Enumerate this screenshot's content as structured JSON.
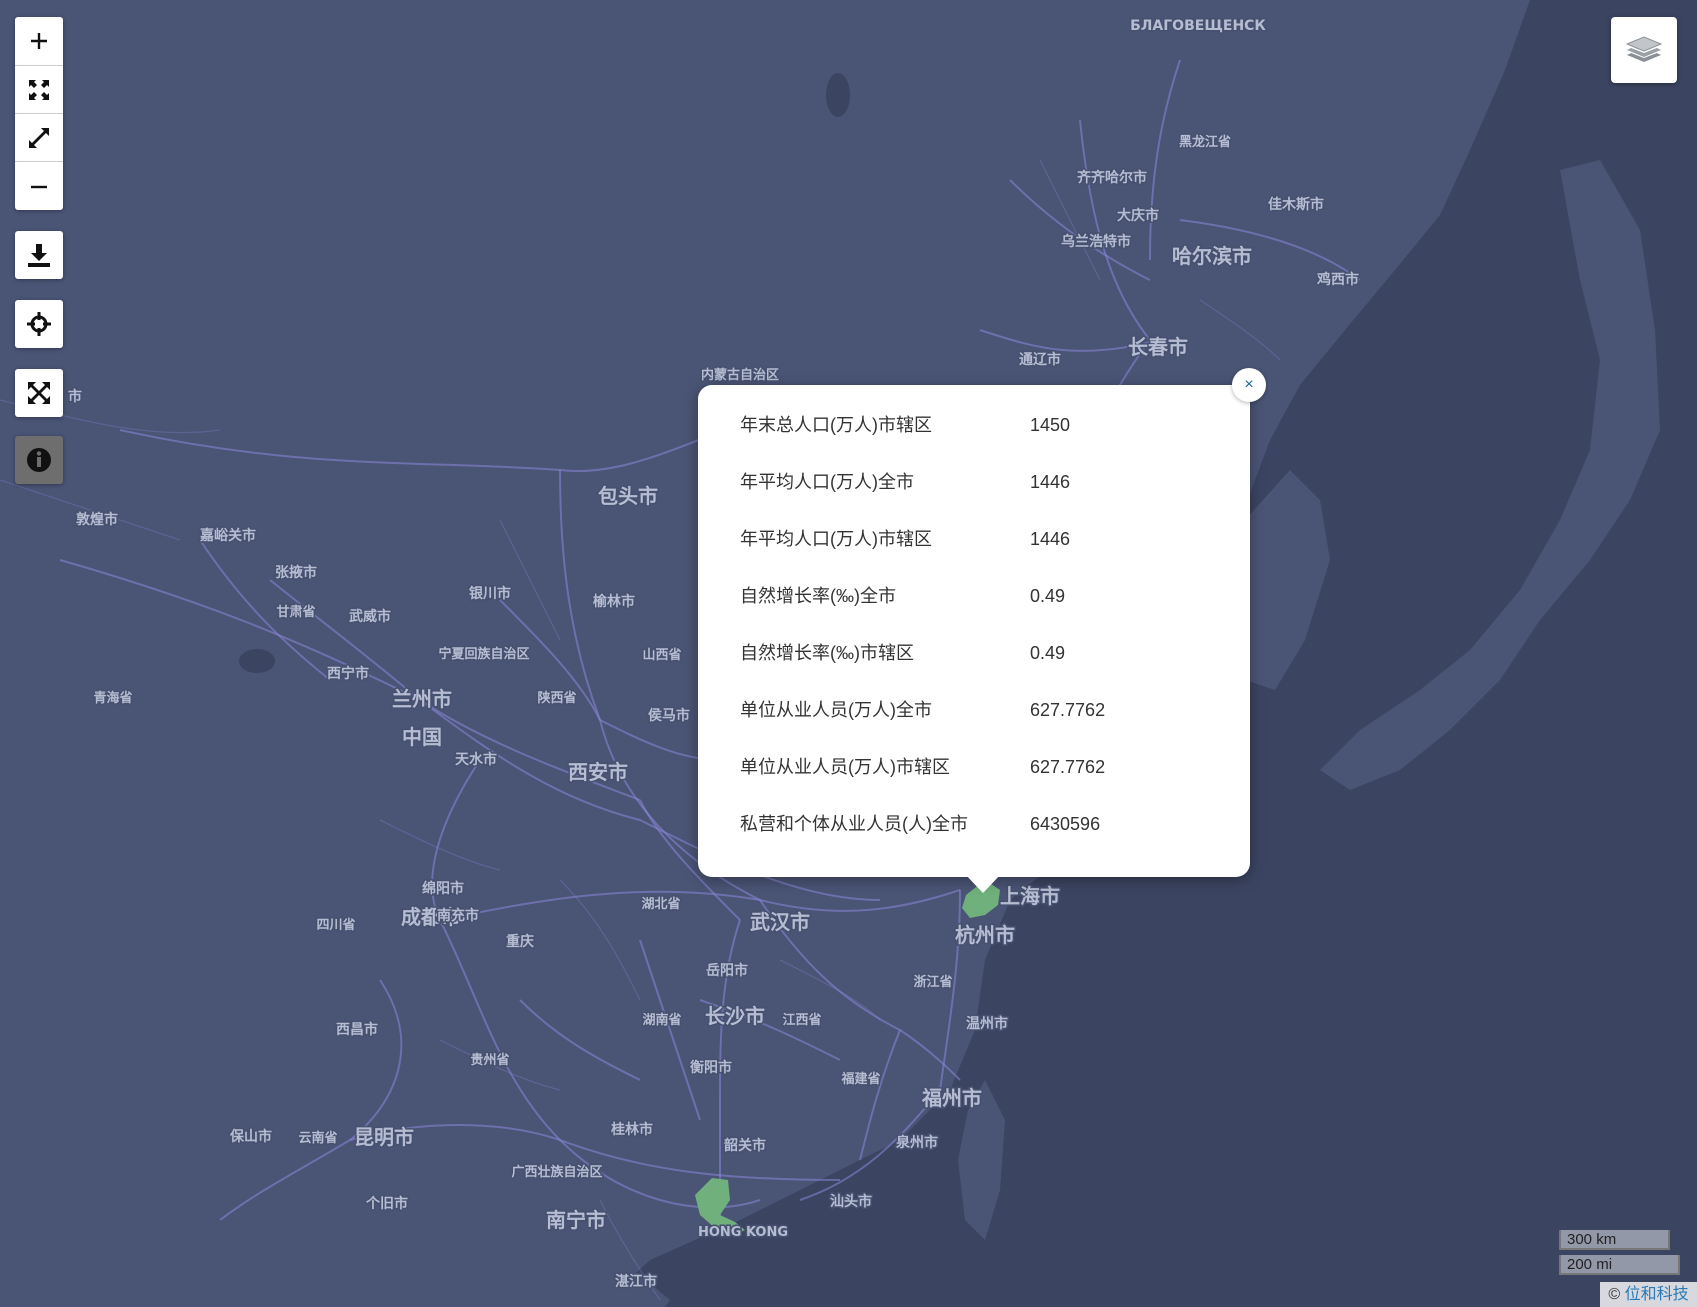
{
  "map": {
    "place_labels": [
      {
        "name": "БЛАГОВЕЩЕНСК",
        "size": 14
      },
      {
        "name": "黑龙江省",
        "size": 13
      },
      {
        "name": "齐齐哈尔市",
        "size": 14
      },
      {
        "name": "佳木斯市",
        "size": 14
      },
      {
        "name": "大庆市",
        "size": 14
      },
      {
        "name": "乌兰浩特市",
        "size": 14
      },
      {
        "name": "哈尔滨市",
        "size": 20
      },
      {
        "name": "鸡西市",
        "size": 14
      },
      {
        "name": "长春市",
        "size": 20
      },
      {
        "name": "通辽市",
        "size": 14
      },
      {
        "name": "内蒙古自治区",
        "size": 13
      },
      {
        "name": "包头市",
        "size": 20
      },
      {
        "name": "敦煌市",
        "size": 14
      },
      {
        "name": "嘉峪关市",
        "size": 14
      },
      {
        "name": "张掖市",
        "size": 14
      },
      {
        "name": "甘肃省",
        "size": 13
      },
      {
        "name": "武威市",
        "size": 14
      },
      {
        "name": "银川市",
        "size": 14
      },
      {
        "name": "榆林市",
        "size": 14
      },
      {
        "name": "宁夏回族自治区",
        "size": 13
      },
      {
        "name": "山西省",
        "size": 13
      },
      {
        "name": "西宁市",
        "size": 14
      },
      {
        "name": "青海省",
        "size": 13
      },
      {
        "name": "兰州市",
        "size": 20
      },
      {
        "name": "陕西省",
        "size": 13
      },
      {
        "name": "侯马市",
        "size": 14
      },
      {
        "name": "中国",
        "size": 20
      },
      {
        "name": "天水市",
        "size": 14
      },
      {
        "name": "西安市",
        "size": 20
      },
      {
        "name": "绵阳市",
        "size": 14
      },
      {
        "name": "湖北省",
        "size": 13
      },
      {
        "name": "四川省",
        "size": 13
      },
      {
        "name": "成都市",
        "size": 20
      },
      {
        "name": "南充市",
        "size": 14
      },
      {
        "name": "重庆",
        "size": 14
      },
      {
        "name": "武汉市",
        "size": 20
      },
      {
        "name": "上海市",
        "size": 20
      },
      {
        "name": "杭州市",
        "size": 20
      },
      {
        "name": "岳阳市",
        "size": 14
      },
      {
        "name": "浙江省",
        "size": 13
      },
      {
        "name": "西昌市",
        "size": 14
      },
      {
        "name": "湖南省",
        "size": 13
      },
      {
        "name": "长沙市",
        "size": 20
      },
      {
        "name": "江西省",
        "size": 13
      },
      {
        "name": "温州市",
        "size": 14
      },
      {
        "name": "贵州省",
        "size": 13
      },
      {
        "name": "衡阳市",
        "size": 14
      },
      {
        "name": "福建省",
        "size": 13
      },
      {
        "name": "福州市",
        "size": 20
      },
      {
        "name": "保山市",
        "size": 14
      },
      {
        "name": "云南省",
        "size": 13
      },
      {
        "name": "昆明市",
        "size": 20
      },
      {
        "name": "桂林市",
        "size": 14
      },
      {
        "name": "韶关市",
        "size": 14
      },
      {
        "name": "泉州市",
        "size": 14
      },
      {
        "name": "广西壮族自治区",
        "size": 13
      },
      {
        "name": "个旧市",
        "size": 14
      },
      {
        "name": "南宁市",
        "size": 20
      },
      {
        "name": "汕头市",
        "size": 14
      },
      {
        "name": "HONG KONG",
        "size": 13
      },
      {
        "name": "湛江市",
        "size": 14
      },
      {
        "name": "市",
        "size": 14
      }
    ]
  },
  "controls": {
    "zoom_in": "zoom-in",
    "fit": "fit-extent",
    "full_extent": "expand-diagonal",
    "zoom_out": "zoom-out",
    "download": "download",
    "locate": "crosshair",
    "fullscreen": "fullscreen",
    "info": "info"
  },
  "popup": {
    "close": "×",
    "rows": [
      {
        "label": "年末总人口(万人)市辖区",
        "value": "1450"
      },
      {
        "label": "年平均人口(万人)全市",
        "value": "1446"
      },
      {
        "label": "年平均人口(万人)市辖区",
        "value": "1446"
      },
      {
        "label": "自然增长率(‰)全市",
        "value": "0.49"
      },
      {
        "label": "自然增长率(‰)市辖区",
        "value": "0.49"
      },
      {
        "label": "单位从业人员(万人)全市",
        "value": "627.7762"
      },
      {
        "label": "单位从业人员(万人)市辖区",
        "value": "627.7762"
      },
      {
        "label": "私营和个体从业人员(人)全市",
        "value": "6430596"
      }
    ]
  },
  "scale": {
    "km": "300 km",
    "mi": "200 mi"
  },
  "attribution": {
    "symbol": "©",
    "link": "位和科技"
  },
  "colors": {
    "map_bg": "#4a5475",
    "sea": "#3b4461",
    "roads": "#8a86d8",
    "highlight": "#6fb07c"
  }
}
